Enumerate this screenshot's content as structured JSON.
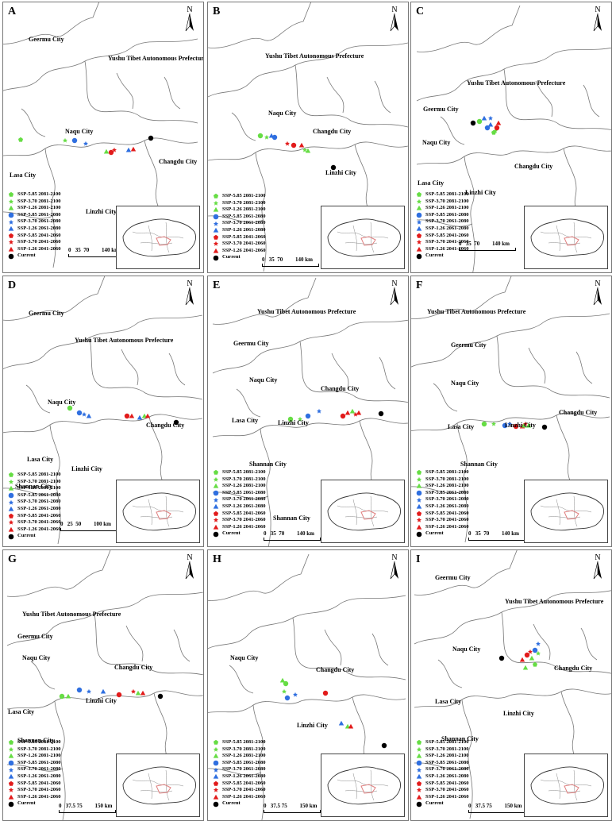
{
  "figure": {
    "panels": [
      {
        "letter": "A",
        "cities": [
          "Geermu City",
          "Yushu Tibet Autonomous Prefecture",
          "Naqu City",
          "Changdu City",
          "Lasa City",
          "Linzhi City"
        ],
        "legend": [
          "SSP-5.85 2081-2100",
          "SSP-3.70 2081-2100",
          "SSP-1.26 2081-2100",
          "SSP-5.85 2061-2080",
          "SSP-3.70 2061-2080",
          "SSP-1.26 2061-2080",
          "SSP-5.85 2041-2060",
          "SSP-3.70 2041-2060",
          "SSP-1.26 2041-2060",
          "Current"
        ],
        "scale": "0   35  70         140 km"
      },
      {
        "letter": "B",
        "cities": [
          "Yushu Tibet Autonomous Prefecture",
          "Naqu City",
          "Changdu City",
          "Linzhi City"
        ],
        "legend": [
          "SSP-5.85 2081-2100",
          "SSP-3.70 2081-2100",
          "SSP-1.26 2081-2100",
          "SSP-5.85 2061-2080",
          "SSP-3.70 2061-2080",
          "SSP-1.26 2061-2080",
          "SSP-5.85 2041-2060",
          "SSP-3.70 2041-2060",
          "SSP-1.26 2041-2060",
          "Current"
        ],
        "scale": "0   35  70         140 km"
      },
      {
        "letter": "C",
        "cities": [
          "Yushu Tibet Autonomous Prefecture",
          "Geermu City",
          "Naqu City",
          "Changdu City",
          "Lasa City",
          "Linzhi City"
        ],
        "legend": [
          "SSP-5.85 2081-2100",
          "SSP-3.70 2081-2100",
          "SSP-1.26 2081-2100",
          "SSP-5.85 2061-2080",
          "SSP-3.70 2061-2080",
          "SSP-1.26 2061-2080",
          "SSP-5.85 2041-2060",
          "SSP-3.70 2041-2060",
          "SSP-1.26 2041-2060",
          "Current"
        ],
        "scale": "0   35  70         140 km"
      },
      {
        "letter": "D",
        "cities": [
          "Geermu City",
          "Yushu Tibet Autonomous Prefecture",
          "Naqu City",
          "Changdu City",
          "Lasa City",
          "Linzhi City",
          "Shannan City"
        ],
        "legend": [
          "SSP-5.85 2081-2100",
          "SSP-3.70 2081-2100",
          "SSP-1.26 2081-2100",
          "SSP-5.85 2061-2080",
          "SSP-3.70 2061-2080",
          "SSP-1.26 2061-2080",
          "SSP-5.85 2041-2060",
          "SSP-3.70 2041-2060",
          "SSP-1.26 2041-2060",
          "Current"
        ],
        "scale": "0   25  50         100 km"
      },
      {
        "letter": "E",
        "cities": [
          "Yushu Tibet Autonomous Prefecture",
          "Geermu City",
          "Naqu City",
          "Changdu City",
          "Lasa City",
          "Linzhi City",
          "Shannan City",
          "Shannan City"
        ],
        "legend": [
          "SSP-5.85 2081-2100",
          "SSP-3.70 2081-2100",
          "SSP-1.26 2081-2100",
          "SSP-5.85 2061-2080",
          "SSP-3.70 2061-2080",
          "SSP-1.26 2061-2080",
          "SSP-5.85 2041-2060",
          "SSP-3.70 2041-2060",
          "SSP-1.26 2041-2060",
          "Current"
        ],
        "scale": "0   35  70         140 km"
      },
      {
        "letter": "F",
        "cities": [
          "Yushu Tibet Autonomous Prefecture",
          "Geermu City",
          "Naqu City",
          "Changdu City",
          "Lasa City",
          "Linzhi City",
          "Shannan City"
        ],
        "legend": [
          "SSP-5.85 2081-2100",
          "SSP-3.70 2081-2100",
          "SSP-1.26 2081-2100",
          "SSP-5.85 2061-2080",
          "SSP-3.70 2061-2080",
          "SSP-1.26 2061-2080",
          "SSP-5.85 2041-2060",
          "SSP-3.70 2041-2060",
          "SSP-1.26 2041-2060",
          "Current"
        ],
        "scale": "0   35  70         140 km"
      },
      {
        "letter": "G",
        "cities": [
          "Yushu Tibet Autonomous Prefecture",
          "Geermu City",
          "Naqu City",
          "Changdu City",
          "Lasa City",
          "Linzhi City",
          "Shannan City"
        ],
        "legend": [
          "SSP-5.85 2081-2100",
          "SSP-3.70 2081-2100",
          "SSP-1.26 2081-2100",
          "SSP-5.85 2061-2080",
          "SSP-3.70 2061-2080",
          "SSP-1.26 2061-2080",
          "SSP-5.85 2041-2060",
          "SSP-3.70 2041-2060",
          "SSP-1.26 2041-2060",
          "Current"
        ],
        "scale": "0   37.5 75         150 km"
      },
      {
        "letter": "H",
        "cities": [
          "Naqu City",
          "Changdu City",
          "Linzhi City"
        ],
        "legend": [
          "SSP-5.85 2081-2100",
          "SSP-3.70 2081-2100",
          "SSP-1.26 2081-2100",
          "SSP-5.85 2061-2080",
          "SSP-3.70 2061-2080",
          "SSP-1.26 2061-2080",
          "SSP-5.85 2041-2060",
          "SSP-3.70 2041-2060",
          "SSP-1.26 2041-2060",
          "Current"
        ],
        "scale": "0   37.5 75         150 km"
      },
      {
        "letter": "I",
        "cities": [
          "Geermu City",
          "Yushu Tibet Autonomous Prefecture",
          "Naqu City",
          "Changdu City",
          "Lasa City",
          "Linzhi City",
          "Shannan City"
        ],
        "legend": [
          "SSP-5.85 2081-2100",
          "SSP-3.70 2081-2100",
          "SSP-1.26 2081-2100",
          "SSP-5.85 2061-2080",
          "SSP-3.70 2061-2080",
          "SSP-1.26 2061-2080",
          "SSP-5.85 2041-2060",
          "SSP-3.70 2041-2060",
          "SSP-1.26 2041-2060",
          "Current"
        ],
        "scale": "0   37.5 75         150 km"
      }
    ],
    "north_label": "N",
    "colors": {
      "green": "#66dd44",
      "blue": "#2f6fe0",
      "red": "#e21b1b",
      "black": "#000000",
      "boundary": "#777777",
      "inset_region": "#e08080"
    }
  }
}
